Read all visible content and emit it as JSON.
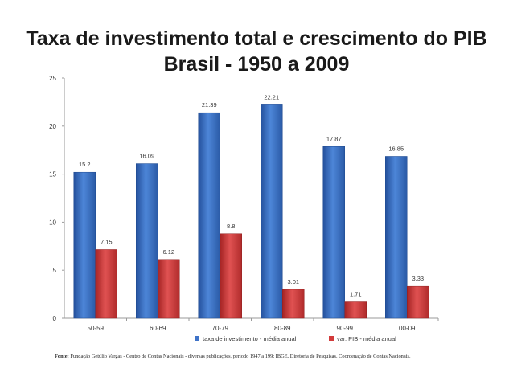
{
  "title_line1": "Taxa de investimento total e crescimento do PIB",
  "title_line2": "Brasil - 1950 a 2009",
  "source_label": "Fonte:",
  "source_text": "Fundação Getúlio Vargas - Centro de Contas Nacionais - diversas publicações, período 1947 a 199; IBGE. Diretoria de Pesquisas. Coordenação de Contas Nacionais.",
  "chart_data": {
    "type": "bar",
    "categories": [
      "50-59",
      "60-69",
      "70-79",
      "80-89",
      "90-99",
      "00-09"
    ],
    "series": [
      {
        "name": "taxa de investimento - média anual",
        "values": [
          15.2,
          16.09,
          21.39,
          22.21,
          17.87,
          16.85
        ],
        "color": "#3f73c8"
      },
      {
        "name": "var. PIB - média anual",
        "values": [
          7.15,
          6.12,
          8.8,
          3.01,
          1.71,
          3.33
        ],
        "color": "#d23b3b"
      }
    ],
    "data_labels": [
      [
        "15.2",
        "16.09",
        "21.39",
        "22.21",
        "17.87",
        "16.85"
      ],
      [
        "7.15",
        "6.12",
        "8.8",
        "3.01",
        "1.71",
        "3.33"
      ]
    ],
    "yticks": [
      0,
      5,
      10,
      15,
      20,
      25
    ],
    "ylim": [
      0,
      25
    ],
    "grid": false,
    "legend_position": "bottom"
  }
}
